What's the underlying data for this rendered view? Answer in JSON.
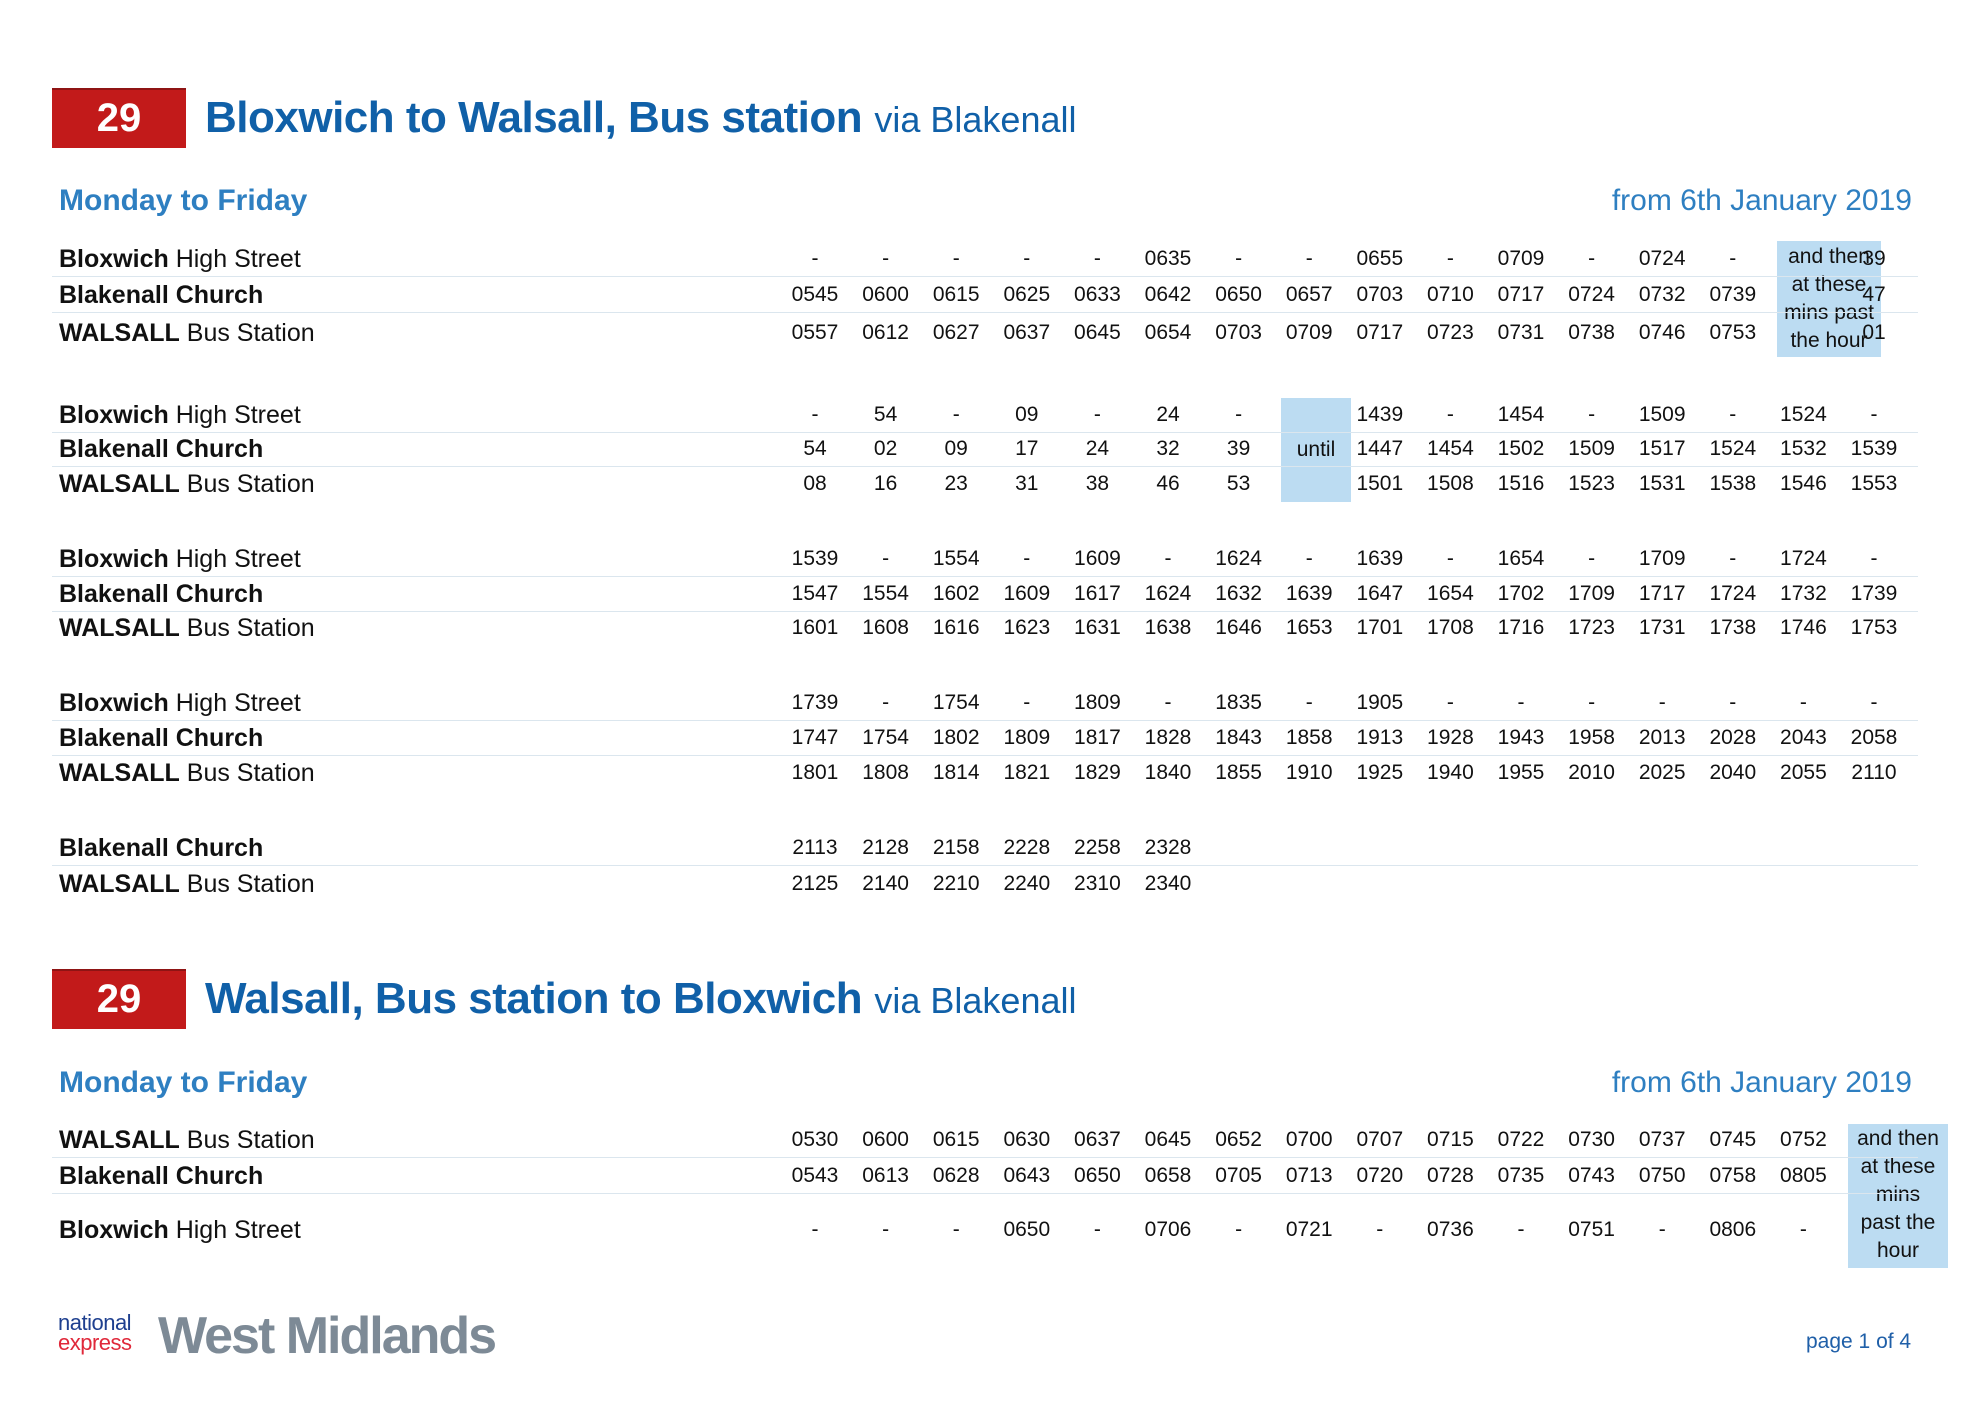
{
  "sections": [
    {
      "route_number": "29",
      "title_bold": "Bloxwich to Walsall, Bus station",
      "title_via": "via Blakenall",
      "days": "Monday to Friday",
      "valid_from": "from 6th January 2019",
      "blocks": [
        {
          "rows": [
            {
              "stop_bold": "Bloxwich",
              "stop_rest": "High Street",
              "times": [
                "-",
                "-",
                "-",
                "-",
                "-",
                "0635",
                "-",
                "-",
                "0655",
                "-",
                "0709",
                "-",
                "0724",
                "-",
                "",
                "39"
              ]
            },
            {
              "stop_bold": "Blakenall Church",
              "stop_rest": "",
              "times": [
                "0545",
                "0600",
                "0615",
                "0625",
                "0633",
                "0642",
                "0650",
                "0657",
                "0703",
                "0710",
                "0717",
                "0724",
                "0732",
                "0739",
                "",
                "47"
              ]
            },
            {
              "stop_bold": "WALSALL",
              "stop_rest": "Bus Station",
              "times": [
                "0557",
                "0612",
                "0627",
                "0637",
                "0645",
                "0654",
                "0703",
                "0709",
                "0717",
                "0723",
                "0731",
                "0738",
                "0746",
                "0753",
                "",
                "01"
              ]
            }
          ],
          "note": {
            "column": 15,
            "lines": [
              "and then",
              "at these",
              "mins past",
              "the hour"
            ]
          }
        },
        {
          "rows": [
            {
              "stop_bold": "Bloxwich",
              "stop_rest": "High Street",
              "times": [
                "-",
                "54",
                "-",
                "09",
                "-",
                "24",
                "-",
                "",
                "1439",
                "-",
                "1454",
                "-",
                "1509",
                "-",
                "1524",
                "-"
              ]
            },
            {
              "stop_bold": "Blakenall Church",
              "stop_rest": "",
              "times": [
                "54",
                "02",
                "09",
                "17",
                "24",
                "32",
                "39",
                "",
                "1447",
                "1454",
                "1502",
                "1509",
                "1517",
                "1524",
                "1532",
                "1539"
              ]
            },
            {
              "stop_bold": "WALSALL",
              "stop_rest": "Bus Station",
              "times": [
                "08",
                "16",
                "23",
                "31",
                "38",
                "46",
                "53",
                "",
                "1501",
                "1508",
                "1516",
                "1523",
                "1531",
                "1538",
                "1546",
                "1553"
              ]
            }
          ],
          "note": {
            "column": 8,
            "lines": [
              "until"
            ]
          }
        },
        {
          "rows": [
            {
              "stop_bold": "Bloxwich",
              "stop_rest": "High Street",
              "times": [
                "1539",
                "-",
                "1554",
                "-",
                "1609",
                "-",
                "1624",
                "-",
                "1639",
                "-",
                "1654",
                "-",
                "1709",
                "-",
                "1724",
                "-"
              ]
            },
            {
              "stop_bold": "Blakenall Church",
              "stop_rest": "",
              "times": [
                "1547",
                "1554",
                "1602",
                "1609",
                "1617",
                "1624",
                "1632",
                "1639",
                "1647",
                "1654",
                "1702",
                "1709",
                "1717",
                "1724",
                "1732",
                "1739"
              ]
            },
            {
              "stop_bold": "WALSALL",
              "stop_rest": "Bus Station",
              "times": [
                "1601",
                "1608",
                "1616",
                "1623",
                "1631",
                "1638",
                "1646",
                "1653",
                "1701",
                "1708",
                "1716",
                "1723",
                "1731",
                "1738",
                "1746",
                "1753"
              ]
            }
          ]
        },
        {
          "rows": [
            {
              "stop_bold": "Bloxwich",
              "stop_rest": "High Street",
              "times": [
                "1739",
                "-",
                "1754",
                "-",
                "1809",
                "-",
                "1835",
                "-",
                "1905",
                "-",
                "-",
                "-",
                "-",
                "-",
                "-",
                "-"
              ]
            },
            {
              "stop_bold": "Blakenall Church",
              "stop_rest": "",
              "times": [
                "1747",
                "1754",
                "1802",
                "1809",
                "1817",
                "1828",
                "1843",
                "1858",
                "1913",
                "1928",
                "1943",
                "1958",
                "2013",
                "2028",
                "2043",
                "2058"
              ]
            },
            {
              "stop_bold": "WALSALL",
              "stop_rest": "Bus Station",
              "times": [
                "1801",
                "1808",
                "1814",
                "1821",
                "1829",
                "1840",
                "1855",
                "1910",
                "1925",
                "1940",
                "1955",
                "2010",
                "2025",
                "2040",
                "2055",
                "2110"
              ]
            }
          ]
        },
        {
          "rows": [
            {
              "stop_bold": "Blakenall Church",
              "stop_rest": "",
              "times": [
                "2113",
                "2128",
                "2158",
                "2228",
                "2258",
                "2328"
              ]
            },
            {
              "stop_bold": "WALSALL",
              "stop_rest": "Bus Station",
              "times": [
                "2125",
                "2140",
                "2210",
                "2240",
                "2310",
                "2340"
              ]
            }
          ]
        }
      ]
    },
    {
      "route_number": "29",
      "title_bold": "Walsall, Bus station to Bloxwich",
      "title_via": "via Blakenall",
      "days": "Monday to Friday",
      "valid_from": "from 6th January 2019",
      "blocks": [
        {
          "rows": [
            {
              "stop_bold": "WALSALL",
              "stop_rest": "Bus Station",
              "times": [
                "0530",
                "0600",
                "0615",
                "0630",
                "0637",
                "0645",
                "0652",
                "0700",
                "0707",
                "0715",
                "0722",
                "0730",
                "0737",
                "0745",
                "0752"
              ]
            },
            {
              "stop_bold": "Blakenall Church",
              "stop_rest": "",
              "times": [
                "0543",
                "0613",
                "0628",
                "0643",
                "0650",
                "0658",
                "0705",
                "0713",
                "0720",
                "0728",
                "0735",
                "0743",
                "0750",
                "0758",
                "0805"
              ]
            },
            {
              "stop_bold": "Bloxwich",
              "stop_rest": "High Street",
              "times": [
                "-",
                "-",
                "-",
                "0650",
                "-",
                "0706",
                "-",
                "0721",
                "-",
                "0736",
                "-",
                "0751",
                "-",
                "0806",
                "-"
              ]
            }
          ],
          "note": {
            "column": 16,
            "lines": [
              "and then",
              "at these",
              "mins",
              "past the",
              "hour"
            ]
          }
        }
      ]
    }
  ],
  "footer": {
    "logo_line1": "national",
    "logo_line2": "express",
    "logo_brand": "West Midlands",
    "page_label": "page 1 of 4"
  },
  "colors": {
    "route_badge": "#c21a1a",
    "title_blue": "#1060a8",
    "subhead_blue": "#2e7fc1",
    "highlight": "#bcdcf2"
  }
}
